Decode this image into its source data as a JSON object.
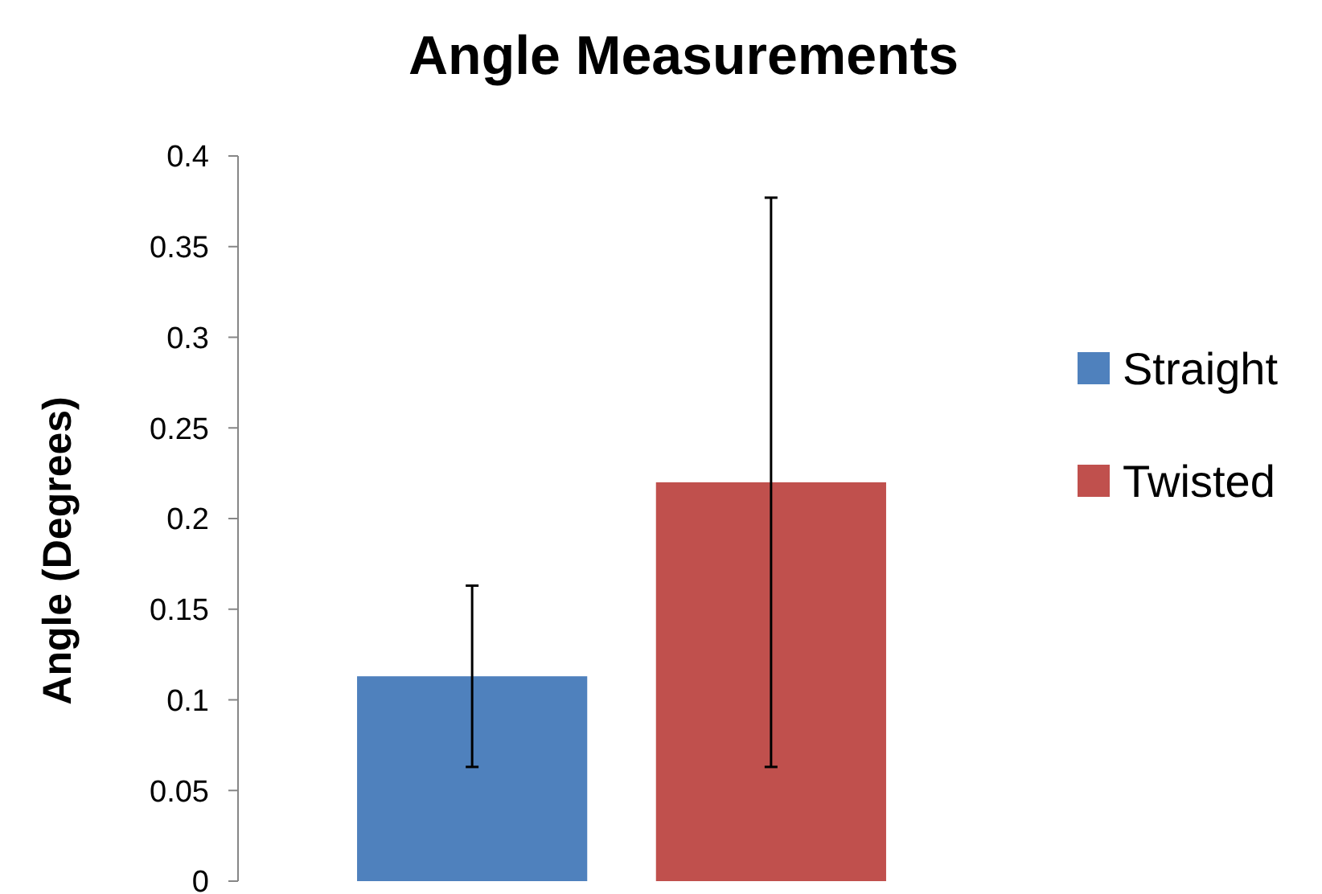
{
  "chart_data": {
    "type": "bar",
    "title": "Angle Measurements",
    "ylabel": "Angle (Degrees)",
    "categories": [
      null
    ],
    "series": [
      {
        "name": "Straight",
        "color": "#4f81bd",
        "values": [
          0.113
        ],
        "errors": [
          0.05
        ]
      },
      {
        "name": "Twisted",
        "color": "#c0504d",
        "values": [
          0.22
        ],
        "errors": [
          0.157
        ]
      }
    ],
    "ylim": [
      0,
      0.4
    ],
    "yticks": [
      0,
      0.05,
      0.1,
      0.15,
      0.2,
      0.25,
      0.3,
      0.35,
      0.4
    ],
    "grid": false,
    "legend": "right"
  }
}
